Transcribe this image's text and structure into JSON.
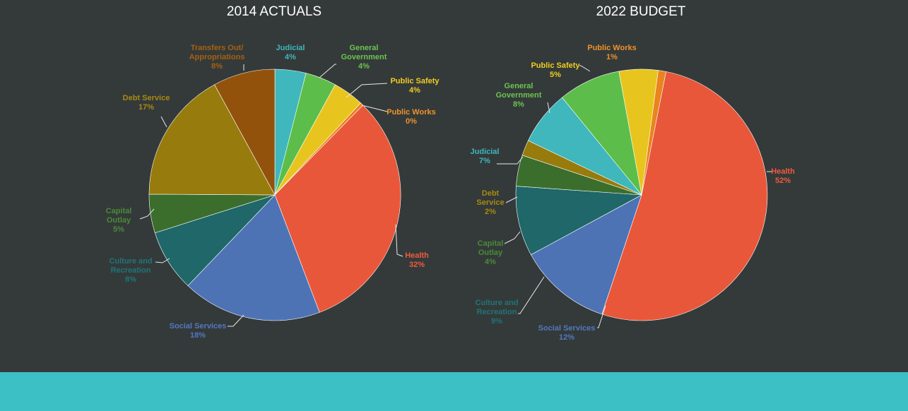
{
  "colors": {
    "background": "#343a3a",
    "footer": "#3dbfc6",
    "leader": "#e8e8e8"
  },
  "chart_data": [
    {
      "type": "pie",
      "title": "2014 ACTUALS",
      "slices": [
        {
          "label": [
            "Judicial"
          ],
          "value": 4,
          "pct": "4%",
          "color": "#3fb7bc",
          "textColor": "#3fb7bc"
        },
        {
          "label": [
            "General",
            "Government"
          ],
          "value": 4,
          "pct": "4%",
          "color": "#5dbd4a",
          "textColor": "#6cc44f"
        },
        {
          "label": [
            "Public Safety"
          ],
          "value": 4,
          "pct": "4%",
          "color": "#e8c51e",
          "textColor": "#f2cd1f"
        },
        {
          "label": [
            "Public Works"
          ],
          "value": 0.4,
          "pct": "0%",
          "color": "#e9841e",
          "textColor": "#f0922a"
        },
        {
          "label": [
            "Health"
          ],
          "value": 32,
          "pct": "32%",
          "color": "#e8573a",
          "textColor": "#ef5b3d"
        },
        {
          "label": [
            "Social Services"
          ],
          "value": 18,
          "pct": "18%",
          "color": "#4d73b5",
          "textColor": "#5278c0"
        },
        {
          "label": [
            "Culture and",
            "Recreation"
          ],
          "value": 8,
          "pct": "8%",
          "color": "#1f6769",
          "textColor": "#207578"
        },
        {
          "label": [
            "Capital",
            "Outlay"
          ],
          "value": 5,
          "pct": "5%",
          "color": "#3b6e2d",
          "textColor": "#4b8a37"
        },
        {
          "label": [
            "Debt Service"
          ],
          "value": 17,
          "pct": "17%",
          "color": "#977b0d",
          "textColor": "#a88a12"
        },
        {
          "label": [
            "Transfers Out/",
            "Appropriations"
          ],
          "value": 8,
          "pct": "8%",
          "color": "#93520c",
          "textColor": "#a8600f"
        }
      ]
    },
    {
      "type": "pie",
      "title": "2022 BUDGET",
      "slices": [
        {
          "label": [
            "Health"
          ],
          "value": 52,
          "pct": "52%",
          "color": "#e8573a",
          "textColor": "#ef5b3d"
        },
        {
          "label": [
            "Social Services"
          ],
          "value": 12,
          "pct": "12%",
          "color": "#4d73b5",
          "textColor": "#5278c0"
        },
        {
          "label": [
            "Culture and",
            "Recreation"
          ],
          "value": 9,
          "pct": "9%",
          "color": "#1f6769",
          "textColor": "#207578"
        },
        {
          "label": [
            "Capital",
            "Outlay"
          ],
          "value": 4,
          "pct": "4%",
          "color": "#3b6e2d",
          "textColor": "#4b8a37"
        },
        {
          "label": [
            "Debt",
            "Service"
          ],
          "value": 2,
          "pct": "2%",
          "color": "#977b0d",
          "textColor": "#a88a12"
        },
        {
          "label": [
            "Judicial"
          ],
          "value": 7,
          "pct": "7%",
          "color": "#3fb7bc",
          "textColor": "#3fb7bc"
        },
        {
          "label": [
            "General",
            "Government"
          ],
          "value": 8,
          "pct": "8%",
          "color": "#5dbd4a",
          "textColor": "#6cc44f"
        },
        {
          "label": [
            "Public Safety"
          ],
          "value": 5,
          "pct": "5%",
          "color": "#e8c51e",
          "textColor": "#f2cd1f"
        },
        {
          "label": [
            "Public Works"
          ],
          "value": 1,
          "pct": "1%",
          "color": "#e9841e",
          "textColor": "#f0922a"
        }
      ]
    }
  ]
}
